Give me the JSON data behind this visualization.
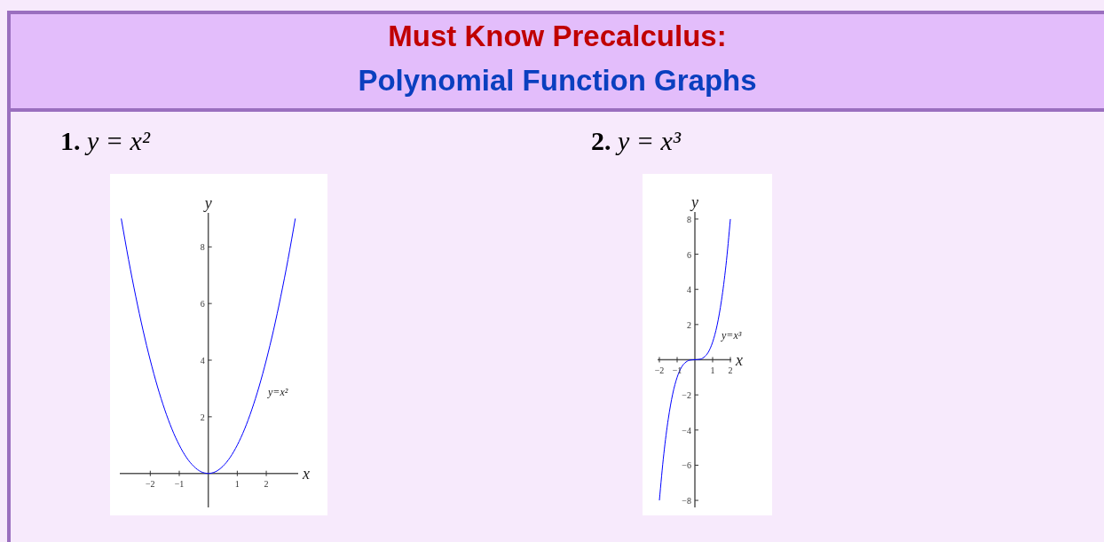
{
  "chart_data": [
    {
      "type": "other",
      "title": "Must Know Precalculus:",
      "subtitle": "Polynomial Function Graphs"
    },
    {
      "type": "line",
      "title": "1. y = x²",
      "xlabel": "x",
      "ylabel": "y",
      "x": [
        -3,
        -2.75,
        -2.5,
        -2.25,
        -2,
        -1.75,
        -1.5,
        -1.25,
        -1,
        -0.75,
        -0.5,
        -0.25,
        0,
        0.25,
        0.5,
        0.75,
        1,
        1.25,
        1.5,
        1.75,
        2,
        2.25,
        2.5,
        2.75,
        3
      ],
      "series": [
        {
          "color": "#0000ff",
          "values": [
            9,
            7.56,
            6.25,
            5.06,
            4,
            3.06,
            2.25,
            1.56,
            1,
            0.56,
            0.25,
            0.06,
            0,
            0.06,
            0.25,
            0.56,
            1,
            1.56,
            2.25,
            3.06,
            4,
            5.06,
            6.25,
            7.56,
            9
          ]
        }
      ],
      "xlim": [
        -3.05,
        3.1
      ],
      "ylim": [
        -1.2,
        9.2
      ],
      "xticks": [
        -2,
        -1,
        1,
        2
      ],
      "yticks": [
        2,
        4,
        6,
        8
      ],
      "annotations": [
        "y=x²"
      ]
    },
    {
      "type": "line",
      "title": "2. y = x³",
      "xlabel": "x",
      "ylabel": "y",
      "x": [
        -2,
        -1.75,
        -1.5,
        -1.25,
        -1,
        -0.75,
        -0.5,
        -0.25,
        0,
        0.25,
        0.5,
        0.75,
        1,
        1.25,
        1.5,
        1.75,
        2
      ],
      "series": [
        {
          "color": "#0000ff",
          "values": [
            -8,
            -5.36,
            -3.38,
            -1.95,
            -1,
            -0.42,
            -0.13,
            -0.02,
            0,
            0.02,
            0.13,
            0.42,
            1,
            1.95,
            3.38,
            5.36,
            8
          ]
        }
      ],
      "xlim": [
        -2.1,
        2.05
      ],
      "ylim": [
        -8.4,
        8.4
      ],
      "xticks": [
        -2,
        -1,
        1,
        2
      ],
      "yticks": [
        -8,
        -6,
        -4,
        -2,
        2,
        4,
        6,
        8
      ],
      "annotations": [
        "y=x³"
      ]
    }
  ]
}
